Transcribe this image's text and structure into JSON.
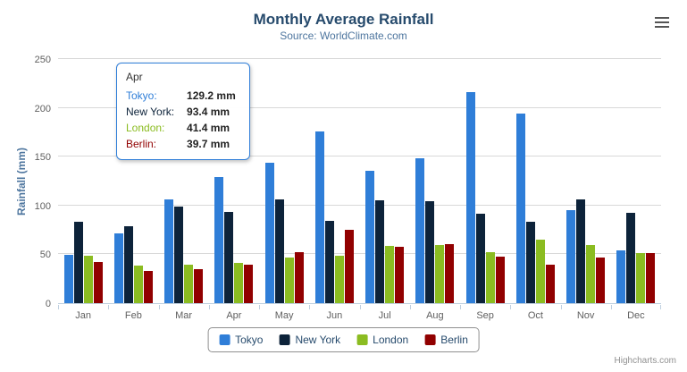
{
  "chart": {
    "credits": "Highcharts.com"
  },
  "tooltip": {
    "header": "Apr",
    "rows": [
      {
        "name": "Tokyo:",
        "value": "129.2 mm",
        "color": "#2f7ed8"
      },
      {
        "name": "New York:",
        "value": "93.4 mm",
        "color": "#0d233a"
      },
      {
        "name": "London:",
        "value": "41.4 mm",
        "color": "#8bbc21"
      },
      {
        "name": "Berlin:",
        "value": "39.7 mm",
        "color": "#910000"
      }
    ]
  },
  "chart_data": {
    "type": "bar",
    "orientation": "vertical",
    "title": "Monthly Average Rainfall",
    "subtitle": "Source: WorldClimate.com",
    "categories": [
      "Jan",
      "Feb",
      "Mar",
      "Apr",
      "May",
      "Jun",
      "Jul",
      "Aug",
      "Sep",
      "Oct",
      "Nov",
      "Dec"
    ],
    "series": [
      {
        "name": "Tokyo",
        "color": "#2f7ed8",
        "values": [
          49.9,
          71.5,
          106.4,
          129.2,
          144.0,
          176.0,
          135.6,
          148.5,
          216.4,
          194.1,
          95.6,
          54.4
        ]
      },
      {
        "name": "New York",
        "color": "#0d233a",
        "values": [
          83.6,
          78.8,
          98.5,
          93.4,
          106.0,
          84.5,
          105.0,
          104.3,
          91.2,
          83.5,
          106.6,
          92.3
        ]
      },
      {
        "name": "London",
        "color": "#8bbc21",
        "values": [
          48.9,
          38.8,
          39.3,
          41.4,
          47.0,
          48.3,
          59.0,
          59.6,
          52.4,
          65.2,
          59.3,
          51.2
        ]
      },
      {
        "name": "Berlin",
        "color": "#910000",
        "values": [
          42.4,
          33.2,
          34.5,
          39.7,
          52.6,
          75.5,
          57.4,
          60.4,
          47.6,
          39.1,
          46.8,
          51.1
        ]
      }
    ],
    "xlabel": "",
    "ylabel": "Rainfall (mm)",
    "ylim": [
      0,
      250
    ],
    "yticks": [
      0,
      50,
      100,
      150,
      200,
      250
    ],
    "grid": true,
    "legend_position": "bottom"
  }
}
